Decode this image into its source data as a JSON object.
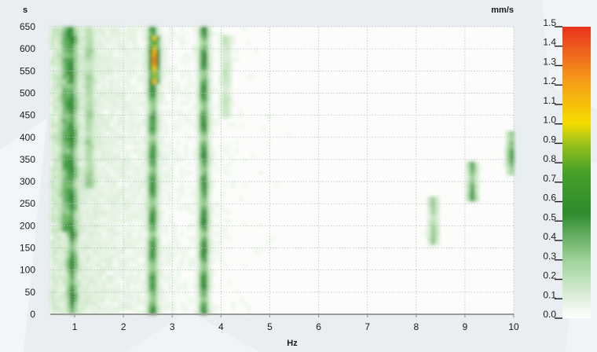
{
  "chart_data": {
    "type": "heatmap",
    "title": "",
    "xlabel": "Hz",
    "ylabel": "s",
    "colorbar_unit": "mm/s",
    "xlim": [
      0.5,
      10
    ],
    "ylim": [
      0,
      650
    ],
    "x_ticks": [
      "1",
      "2",
      "3",
      "4",
      "5",
      "6",
      "7",
      "8",
      "9",
      "10"
    ],
    "y_ticks": [
      "0",
      "50",
      "100",
      "150",
      "200",
      "250",
      "300",
      "350",
      "400",
      "450",
      "500",
      "550",
      "600",
      "650"
    ],
    "colorbar_range": [
      0,
      1.5
    ],
    "colorbar_ticks": [
      "0.0",
      "0.1",
      "0.2",
      "0.3",
      "0.4",
      "0.5",
      "0.6",
      "0.7",
      "0.8",
      "0.9",
      "1.0",
      "1.1",
      "1.2",
      "1.3",
      "1.4",
      "1.5"
    ],
    "colorscale": [
      "#ffffff",
      "#9fd29a",
      "#2e8b2e",
      "#9cc21a",
      "#f5dc00",
      "#f59a1a",
      "#e8311f"
    ],
    "grid": true,
    "features": [
      {
        "freq": 0.95,
        "s_start": 0,
        "s_end": 650,
        "peak": 0.5
      },
      {
        "freq": 0.8,
        "s_start": 200,
        "s_end": 650,
        "peak": 0.3
      },
      {
        "freq": 1.3,
        "s_start": 300,
        "s_end": 650,
        "peak": 0.25
      },
      {
        "freq": 2.6,
        "s_start": 0,
        "s_end": 650,
        "peak": 0.55
      },
      {
        "freq": 2.65,
        "s_start": 530,
        "s_end": 620,
        "peak": 0.75
      },
      {
        "freq": 3.65,
        "s_start": 0,
        "s_end": 650,
        "peak": 0.6
      },
      {
        "freq": 4.1,
        "s_start": 450,
        "s_end": 620,
        "peak": 0.2
      },
      {
        "freq": 8.35,
        "s_start": 170,
        "s_end": 260,
        "peak": 0.35
      },
      {
        "freq": 9.15,
        "s_start": 270,
        "s_end": 330,
        "peak": 0.55
      },
      {
        "freq": 9.95,
        "s_start": 330,
        "s_end": 400,
        "peak": 0.5
      }
    ]
  }
}
